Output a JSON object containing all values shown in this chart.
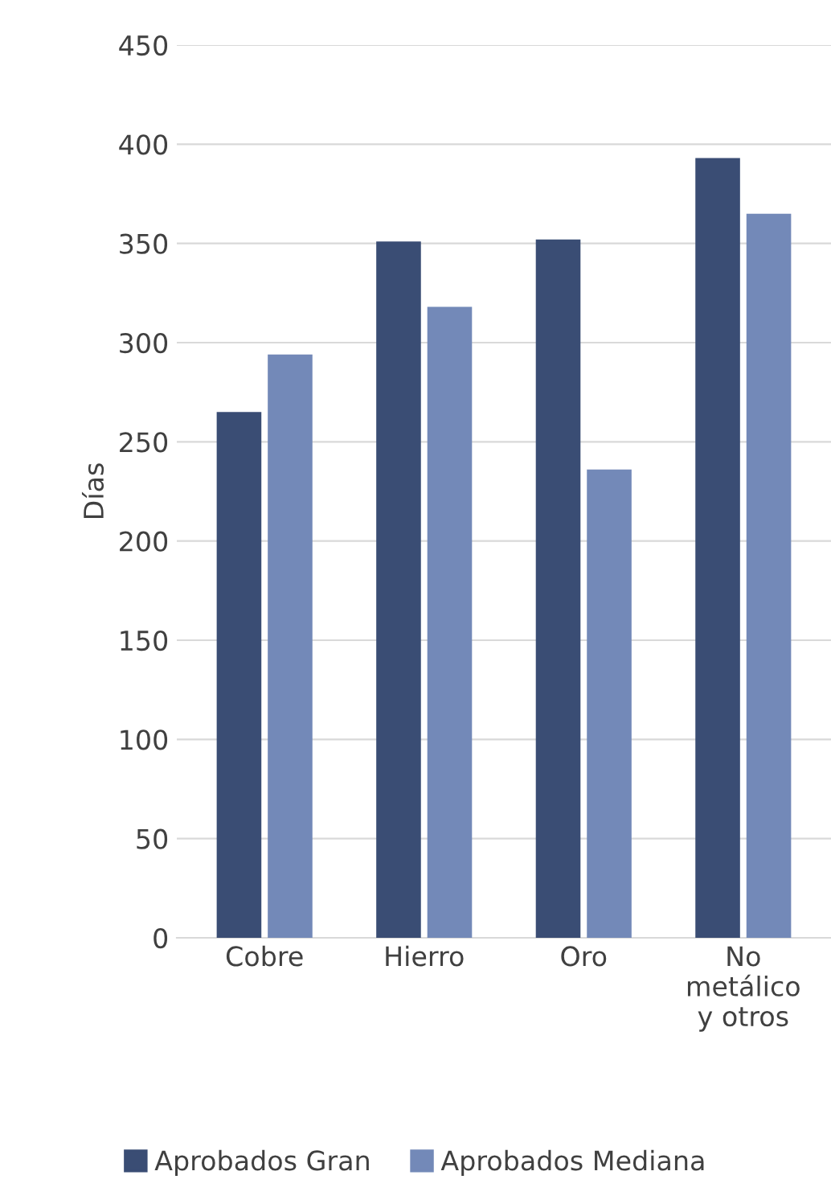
{
  "chart_data": {
    "type": "bar",
    "ylabel": "Días",
    "categories": [
      "Cobre",
      "Hierro",
      "Oro",
      "No\nmetálico\ny otros"
    ],
    "series": [
      {
        "name": "Aprobados Gran",
        "color": "#3a4d74",
        "values": [
          265,
          351,
          352,
          393
        ]
      },
      {
        "name": "Aprobados Mediana",
        "color": "#7389b8",
        "values": [
          294,
          318,
          236,
          365
        ]
      }
    ],
    "ylim": [
      0,
      450
    ],
    "yticks": [
      0,
      50,
      100,
      150,
      200,
      250,
      300,
      350,
      400,
      450
    ],
    "grid": "y",
    "legend": "bottom"
  }
}
